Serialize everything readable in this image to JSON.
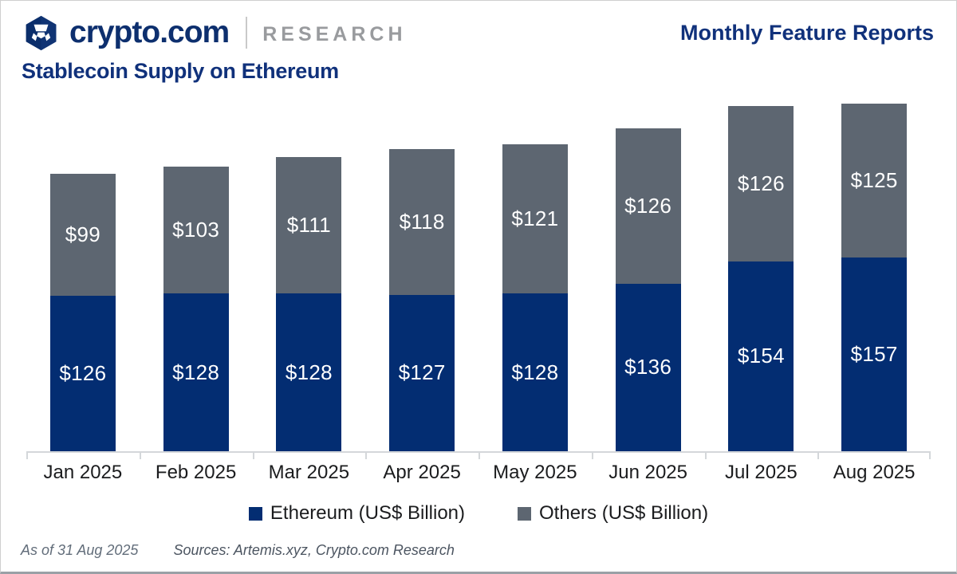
{
  "header": {
    "brand": "crypto.com",
    "brand_suffix": "RESEARCH",
    "right_label": "Monthly Feature Reports"
  },
  "title": "Stablecoin Supply on Ethereum",
  "chart_data": {
    "type": "bar",
    "stacked": true,
    "grid": false,
    "legend_position": "bottom",
    "categories": [
      "Jan 2025",
      "Feb 2025",
      "Mar 2025",
      "Apr 2025",
      "May 2025",
      "Jun 2025",
      "Jul 2025",
      "Aug 2025"
    ],
    "series": [
      {
        "name": "Ethereum (US$ Billion)",
        "color": "#032d72",
        "values": [
          126,
          128,
          128,
          127,
          128,
          136,
          154,
          157
        ],
        "labels": [
          "$126",
          "$128",
          "$128",
          "$127",
          "$128",
          "$136",
          "$154",
          "$157"
        ]
      },
      {
        "name": "Others (US$ Billion)",
        "color": "#5d6671",
        "values": [
          99,
          103,
          111,
          118,
          121,
          126,
          126,
          125
        ],
        "labels": [
          "$99",
          "$103",
          "$111",
          "$118",
          "$121",
          "$126",
          "$126",
          "$125"
        ]
      }
    ],
    "ylim": [
      0,
      295
    ]
  },
  "colors": {
    "brand_navy": "#0d2f6e",
    "heading_navy": "#10317b",
    "bar_blue": "#032d72",
    "bar_gray": "#5d6671",
    "axis_gray": "#d4d7da",
    "research_gray": "#999b9e"
  },
  "footer": {
    "as_of": "As of 31 Aug 2025",
    "sources": "Sources: Artemis.xyz, Crypto.com Research"
  }
}
